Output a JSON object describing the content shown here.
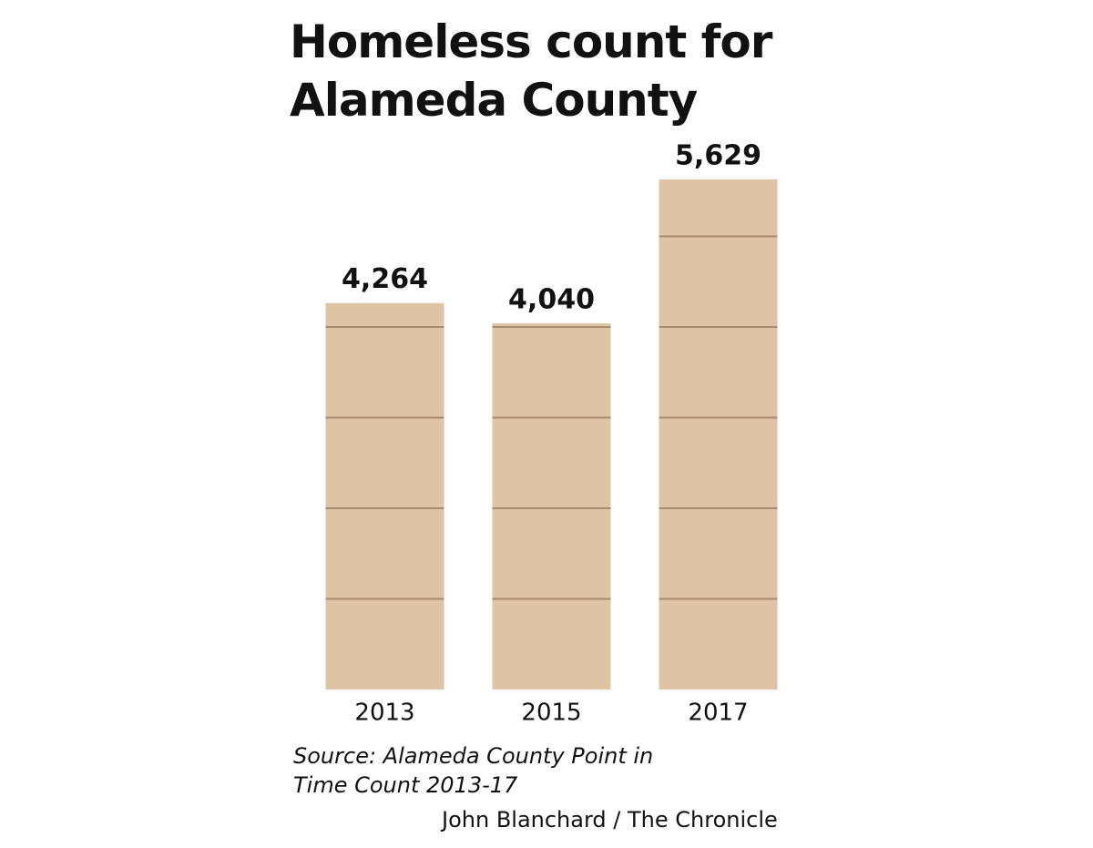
{
  "chart_data": {
    "type": "bar",
    "title": "Homeless count for Alameda County",
    "categories": [
      "2013",
      "2015",
      "2017"
    ],
    "values": [
      4264,
      4040,
      5629
    ],
    "value_labels": [
      "4,264",
      "4,040",
      "5,629"
    ],
    "color": "#dfc3a5",
    "grid_color": "#a88b70",
    "ylim": [
      0,
      6000
    ],
    "yticks": [
      1000,
      2000,
      3000,
      4000,
      5000
    ],
    "grid": true,
    "source": "Source: Alameda County Point in Time Count 2013-17",
    "credit": "John Blanchard / The Chronicle"
  }
}
